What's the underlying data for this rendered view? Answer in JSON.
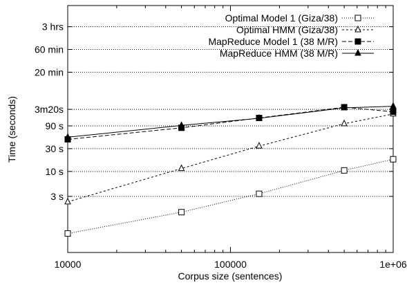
{
  "chart_data": {
    "type": "line",
    "xlabel": "Corpus size (sentences)",
    "ylabel": "Time (seconds)",
    "x_scale": "log",
    "y_scale": "log",
    "xlim": [
      10000,
      1000000
    ],
    "ylim_seconds": [
      0.2,
      30000
    ],
    "x_ticks": [
      {
        "value": 10000,
        "label": "10000"
      },
      {
        "value": 100000,
        "label": "100000"
      },
      {
        "value": 1000000,
        "label": "1e+06"
      }
    ],
    "y_ticks": [
      {
        "value": 3,
        "label": "3 s"
      },
      {
        "value": 10,
        "label": "10 s"
      },
      {
        "value": 30,
        "label": "30 s"
      },
      {
        "value": 90,
        "label": "90 s"
      },
      {
        "value": 200,
        "label": "3m20s"
      },
      {
        "value": 1200,
        "label": "20 min"
      },
      {
        "value": 3600,
        "label": "60 min"
      },
      {
        "value": 10800,
        "label": "3 hrs"
      }
    ],
    "grid": true,
    "legend_position": "top-right",
    "series": [
      {
        "name": "Optimal Model 1 (Giza/38)",
        "marker": "open-square",
        "dash": "dotted",
        "points": [
          [
            10000,
            0.5
          ],
          [
            50000,
            1.4
          ],
          [
            150000,
            3.4
          ],
          [
            500000,
            10.5
          ],
          [
            1000000,
            18
          ]
        ]
      },
      {
        "name": "Optimal HMM (Giza/38)",
        "marker": "open-triangle",
        "dash": "dashed-short",
        "points": [
          [
            10000,
            2.3
          ],
          [
            50000,
            11.5
          ],
          [
            150000,
            34
          ],
          [
            500000,
            100
          ],
          [
            1000000,
            160
          ]
        ]
      },
      {
        "name": "MapReduce Model 1 (38 M/R)",
        "marker": "filled-square",
        "dash": "dashed",
        "points": [
          [
            10000,
            47
          ],
          [
            50000,
            82
          ],
          [
            150000,
            132
          ],
          [
            500000,
            222
          ],
          [
            1000000,
            178
          ]
        ]
      },
      {
        "name": "MapReduce HMM (38 M/R)",
        "marker": "filled-triangle",
        "dash": "solid",
        "points": [
          [
            10000,
            52
          ],
          [
            50000,
            92
          ],
          [
            150000,
            130
          ],
          [
            500000,
            215
          ],
          [
            1000000,
            232
          ]
        ]
      }
    ]
  }
}
